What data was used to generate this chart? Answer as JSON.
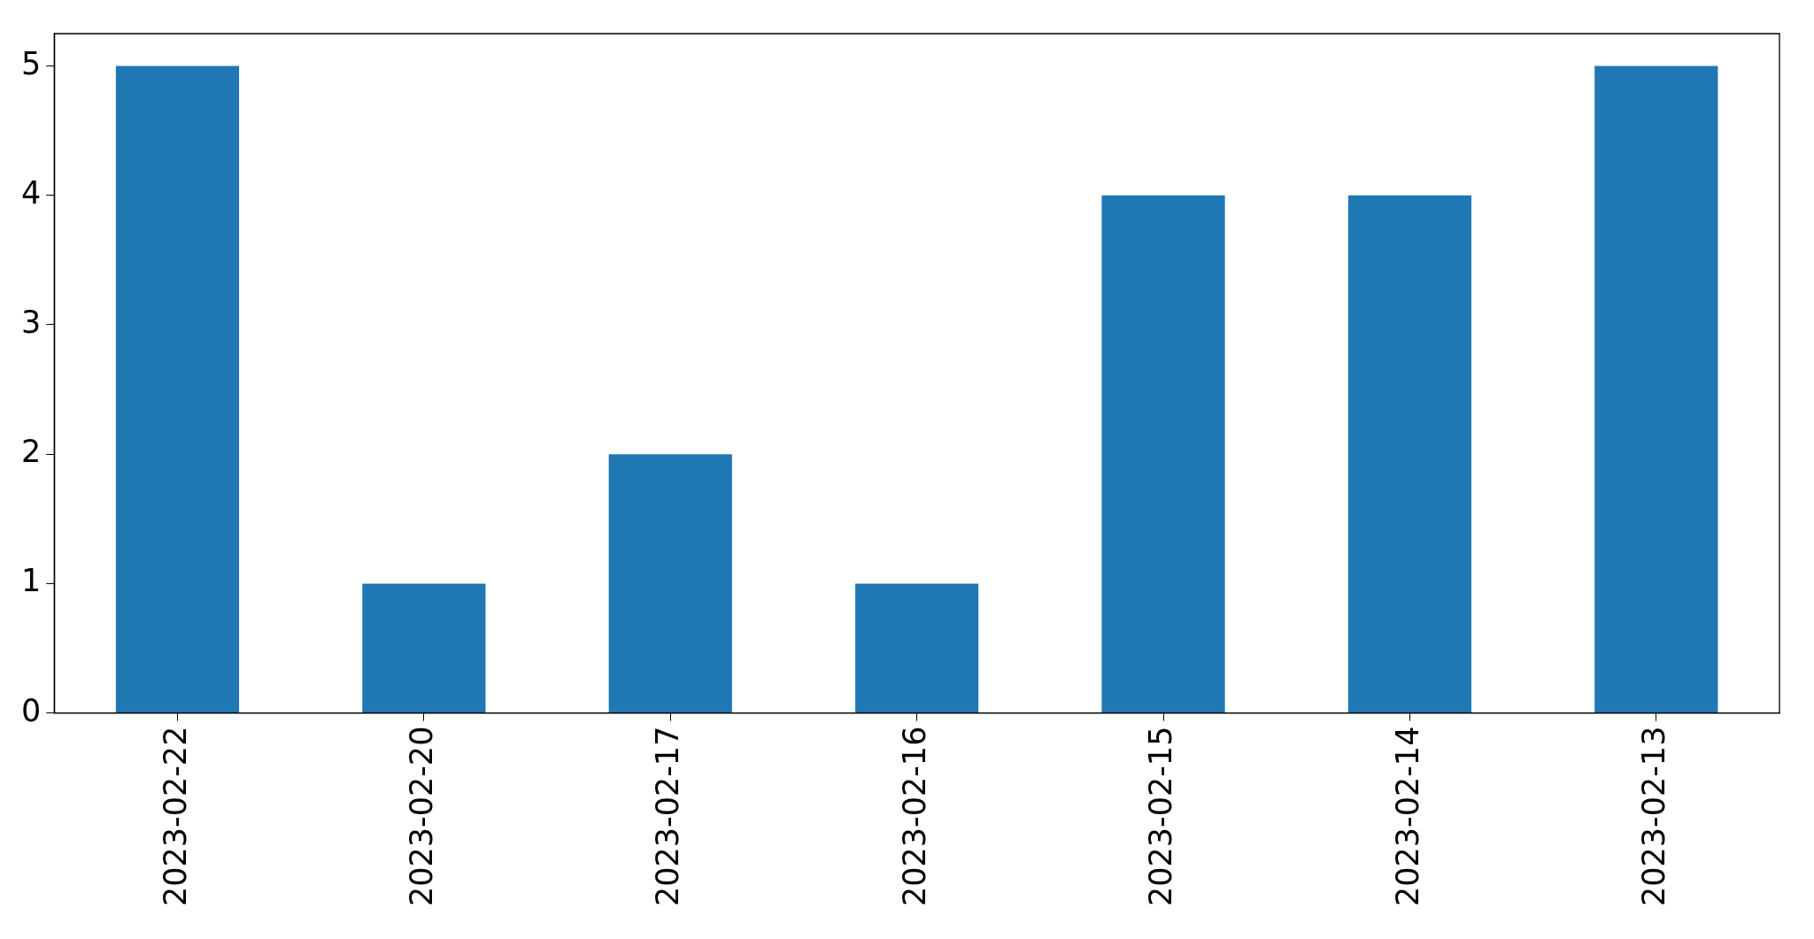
{
  "chart_data": {
    "type": "bar",
    "categories": [
      "2023-02-22",
      "2023-02-20",
      "2023-02-17",
      "2023-02-16",
      "2023-02-15",
      "2023-02-14",
      "2023-02-13"
    ],
    "values": [
      5,
      1,
      2,
      1,
      4,
      4,
      5
    ],
    "color": "#1f77b4",
    "ylim": [
      0,
      5.25
    ],
    "yticks": [
      0,
      1,
      2,
      3,
      4,
      5
    ],
    "legend": false
  }
}
